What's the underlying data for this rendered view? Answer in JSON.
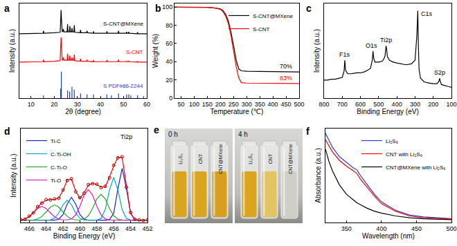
{
  "chart_data": [
    {
      "type": "line",
      "title": "a",
      "xlabel": "2θ (degree)",
      "ylabel": "Intensity (a.u.)",
      "xlim": [
        5,
        60
      ],
      "xticks": [
        10,
        20,
        30,
        40,
        50,
        60
      ],
      "ylim": [
        0,
        100
      ],
      "tick_labels": "x",
      "series": [
        {
          "name": "S-CNT@MXene",
          "color": "#000000",
          "x": [
            5,
            10,
            15,
            15.2,
            15.4,
            15.6,
            20,
            22.6,
            22.8,
            23.0,
            23.2,
            23.5,
            23.8,
            24.0,
            24.2,
            25.6,
            25.8,
            26.0,
            26.6,
            26.8,
            27.0,
            27.5,
            27.7,
            27.9,
            28.5,
            28.7,
            28.9,
            31.2,
            31.4,
            31.6,
            34.0,
            34.2,
            34.4,
            36.8,
            37.0,
            37.2,
            42.6,
            42.8,
            43.0,
            47.6,
            47.8,
            48.0,
            51.1,
            51.3,
            51.5,
            52.0,
            52.2,
            52.4,
            55.8,
            56.0,
            56.2,
            60
          ],
          "values": [
            68,
            68,
            68.5,
            68.5,
            71,
            68.5,
            69,
            69.5,
            80,
            93,
            82,
            70,
            70.5,
            73,
            70,
            70,
            78,
            70,
            70,
            76,
            70,
            70,
            74,
            70,
            70,
            77,
            69.5,
            69,
            72,
            69,
            69,
            71,
            69,
            68.5,
            70.5,
            68.5,
            68.5,
            70.5,
            68.5,
            68.5,
            71,
            68.5,
            68.5,
            70,
            68.5,
            68.5,
            70,
            68.5,
            68,
            69.5,
            68,
            68
          ]
        },
        {
          "name": "S-CNT",
          "color": "#ff0000",
          "x": [
            5,
            10,
            15,
            15.2,
            15.4,
            15.6,
            20,
            22.6,
            22.8,
            23.0,
            23.2,
            23.5,
            23.8,
            24.0,
            24.2,
            25.6,
            25.8,
            26.0,
            26.6,
            26.8,
            27.0,
            27.5,
            27.7,
            27.9,
            28.5,
            28.7,
            28.9,
            31.2,
            31.4,
            31.6,
            34.0,
            34.2,
            34.4,
            36.8,
            37.0,
            37.2,
            42.6,
            42.8,
            43.0,
            47.6,
            47.8,
            48.0,
            51.1,
            51.3,
            51.5,
            52.0,
            52.2,
            52.4,
            55.8,
            56.0,
            56.2,
            60
          ],
          "values": [
            38,
            38,
            38.5,
            38.5,
            40.5,
            38.5,
            39,
            39.5,
            52,
            64,
            54,
            40,
            40.5,
            43,
            40,
            40,
            47,
            40,
            40,
            45,
            40,
            40,
            43,
            40,
            40,
            46,
            39.5,
            39,
            41.5,
            39,
            39,
            40.5,
            39,
            38.5,
            40,
            38.5,
            38.5,
            40,
            38.5,
            38.5,
            40.5,
            38.5,
            38.5,
            39.5,
            38.5,
            38.5,
            39.5,
            38.5,
            38,
            39,
            38,
            38
          ]
        },
        {
          "name": "S PDF#86-2244",
          "color": "#1f3fbf",
          "type": "bar",
          "x": [
            15.4,
            22.8,
            23.1,
            25.8,
            26.7,
            27.7,
            28.7,
            31.4,
            34.2,
            37.0,
            42.7,
            44.7,
            47.8,
            51.3,
            52.2,
            53.1,
            56.0,
            58.6
          ],
          "values": [
            3,
            10,
            28,
            8,
            7,
            12,
            9,
            5,
            4,
            4,
            4,
            3,
            5,
            4,
            4,
            3,
            3,
            2
          ]
        }
      ]
    },
    {
      "type": "line",
      "title": "b",
      "xlabel": "Temperature (℃)",
      "ylabel": "Weight (%)",
      "xlim": [
        25,
        500
      ],
      "xticks": [
        50,
        100,
        150,
        200,
        250,
        300,
        350,
        400,
        450,
        500
      ],
      "ylim": [
        0,
        104
      ],
      "yticks": [
        0,
        20,
        40,
        60,
        80,
        100
      ],
      "legend": "upper right",
      "x": [
        25,
        100,
        150,
        180,
        200,
        210,
        220,
        230,
        240,
        250,
        260,
        270,
        280,
        300,
        400,
        500
      ],
      "series": [
        {
          "name": "S-CNT@MXene",
          "color": "#000000",
          "values": [
            100,
            100,
            99.8,
            99,
            98,
            96,
            92,
            85,
            73,
            58,
            42,
            32,
            30,
            29.5,
            29,
            28.8
          ]
        },
        {
          "name": "S-CNT",
          "color": "#ff0000",
          "values": [
            100,
            100,
            99.8,
            99,
            97.5,
            95,
            90,
            82,
            69,
            52,
            35,
            22,
            17,
            16.5,
            16,
            16
          ]
        }
      ],
      "annotations": [
        {
          "text": "70%",
          "x": 450,
          "y": 29.5,
          "color": "#000000"
        },
        {
          "text": "83%",
          "x": 450,
          "y": 16.5,
          "color": "#ff0000"
        }
      ]
    },
    {
      "type": "line",
      "title": "c",
      "xlabel": "Binding Energy (eV)",
      "ylabel": "Intensity (a.u.)",
      "xlim": [
        800,
        100
      ],
      "xticks": [
        800,
        700,
        600,
        500,
        400,
        300,
        200,
        100
      ],
      "ylim": [
        0,
        105
      ],
      "tick_labels": "x",
      "x": [
        800,
        780,
        760,
        740,
        720,
        700,
        690,
        686,
        682,
        670,
        650,
        620,
        600,
        580,
        560,
        545,
        535,
        531,
        527,
        520,
        500,
        480,
        470,
        465,
        462,
        459,
        456,
        452,
        440,
        420,
        400,
        380,
        350,
        320,
        300,
        290,
        285,
        282,
        278,
        270,
        250,
        230,
        200,
        180,
        170,
        165,
        162,
        155,
        140,
        120,
        100
      ],
      "series": [
        {
          "color": "#000000",
          "values": [
            20,
            20,
            21,
            21,
            22,
            23,
            30,
            42,
            31,
            27,
            27,
            28,
            28,
            29,
            31,
            33,
            42,
            52,
            44,
            40,
            40,
            41,
            44,
            47,
            53,
            58,
            54,
            46,
            42,
            40,
            39,
            38,
            37,
            38,
            42,
            70,
            97,
            60,
            32,
            22,
            18,
            17,
            16,
            16,
            18,
            22,
            19,
            15,
            14,
            13,
            12
          ]
        }
      ],
      "annotations": [
        {
          "text": "F1s",
          "x": 686,
          "y": 43
        },
        {
          "text": "O1s",
          "x": 540,
          "y": 53
        },
        {
          "text": "Ti2p",
          "x": 459,
          "y": 59
        },
        {
          "text": "C1s",
          "x": 235,
          "y": 88
        },
        {
          "text": "S2p",
          "x": 164,
          "y": 23
        }
      ]
    },
    {
      "type": "line",
      "title": "d",
      "xlabel": "Binding Energy (eV)",
      "ylabel": "Intensity (a.u.)",
      "xlim": [
        467,
        452
      ],
      "xticks": [
        466,
        464,
        462,
        460,
        458,
        456,
        454,
        452
      ],
      "ylim": [
        -3,
        120
      ],
      "tick_labels": "x",
      "legend": "upper left",
      "x": [
        467,
        466.5,
        466,
        465.5,
        465,
        464.5,
        464,
        463.5,
        463,
        462.5,
        462,
        461.5,
        461,
        460.5,
        460,
        459.5,
        459,
        458.5,
        458,
        457.5,
        457,
        456.5,
        456,
        455.5,
        455,
        454.5,
        454,
        453.5,
        453,
        452.5,
        452
      ],
      "series": [
        {
          "name": "Ti-C",
          "color": "#1f1fd0",
          "values": [
            0,
            0,
            0,
            0,
            0,
            0,
            0,
            0,
            0.1,
            1.3,
            7.5,
            21.2,
            30,
            21.2,
            7.5,
            1.3,
            0.1,
            0,
            0,
            0,
            0,
            0.7,
            9.2,
            41.3,
            68,
            41.3,
            9.2,
            0.7,
            0,
            0,
            0
          ]
        },
        {
          "name": "C-Ti-OH",
          "color": "#00a8c0",
          "values": [
            0,
            0,
            0,
            0,
            0,
            0,
            0,
            0.4,
            2.6,
            9.4,
            20.2,
            26,
            20.2,
            9.4,
            2.6,
            0.4,
            0,
            0,
            0.2,
            2.5,
            13.9,
            39.6,
            56,
            39.6,
            13.9,
            2.5,
            0.2,
            0,
            0,
            0,
            0
          ]
        },
        {
          "name": "C-Ti-O",
          "color": "#2ca02c",
          "values": [
            0,
            0,
            0.1,
            0.4,
            1.7,
            5.0,
            10.8,
            17.1,
            20,
            17.1,
            10.8,
            5.0,
            1.7,
            0.4,
            0.4,
            1.5,
            5.8,
            15.6,
            28,
            34,
            28,
            15.6,
            5.8,
            1.5,
            0.3,
            0,
            0,
            0,
            0,
            0,
            0
          ]
        },
        {
          "name": "Ti-O",
          "color": "#d020d0",
          "values": [
            0.4,
            1.5,
            4.5,
            9.7,
            15.4,
            18,
            15.4,
            9.7,
            4.5,
            1.5,
            0.4,
            0.4,
            1.8,
            6.9,
            18.3,
            32.9,
            40,
            32.9,
            18.3,
            6.9,
            1.8,
            0.3,
            0,
            0,
            0,
            0,
            0,
            0,
            0,
            0,
            0
          ]
        },
        {
          "color": "#ff0000",
          "values": [
            0.4,
            1.5,
            4.6,
            10.1,
            17.1,
            23.0,
            26.2,
            27.2,
            27.2,
            29.3,
            38.9,
            52.6,
            53.7,
            37.9,
            28.8,
            36.1,
            45.9,
            48.5,
            46.5,
            43.4,
            43.7,
            56.2,
            71.0,
            82.4,
            82.2,
            43.8,
            9.4,
            0.7,
            0,
            0,
            0
          ]
        },
        {
          "type": "scatter",
          "marker": "circle-open",
          "color": "#8b0000",
          "values": [
            0.9,
            1.2,
            5.3,
            9.6,
            17.8,
            22.4,
            26.9,
            26.6,
            27.9,
            28.7,
            39.6,
            51.9,
            54.3,
            37.2,
            29.5,
            35.4,
            46.6,
            47.8,
            47.2,
            42.7,
            44.4,
            55.5,
            71.8,
            81.7,
            83.0,
            43.1,
            10.1,
            1.2,
            0.4,
            -0.3,
            0.5
          ]
        }
      ],
      "annotations": [
        {
          "text": "Ti2p",
          "x": 454.5,
          "y": 103
        }
      ]
    },
    {
      "type": "line",
      "title": "f",
      "xlabel": "Wavelength (nm)",
      "ylabel": "Absorbance (a.u.)",
      "xlim": [
        320,
        500
      ],
      "xticks": [
        350,
        400,
        450,
        500
      ],
      "ylim": [
        0,
        100
      ],
      "tick_labels": "x",
      "legend": "upper right",
      "x": [
        320,
        325,
        330,
        340,
        350,
        360,
        365,
        370,
        380,
        390,
        400,
        420,
        440,
        460,
        480,
        500
      ],
      "series": [
        {
          "name": "Li₂S₆",
          "color": "#1f3fdf",
          "values": [
            95,
            88,
            80,
            70,
            64,
            58,
            56,
            50,
            40,
            30,
            22,
            13,
            8,
            6,
            5,
            4
          ]
        },
        {
          "name": "CNT with Li₂S₆",
          "color": "#ff0000",
          "values": [
            88,
            82,
            75,
            66,
            60,
            55,
            52,
            46,
            37,
            28,
            20,
            12,
            7,
            5,
            4.5,
            4
          ]
        },
        {
          "name": "CNT@MXene with Li₂S₆",
          "color": "#000000",
          "values": [
            78,
            65,
            55,
            40,
            30,
            24,
            21,
            19,
            15,
            12,
            10,
            7,
            5,
            4,
            3.5,
            3
          ]
        }
      ]
    }
  ],
  "photo": {
    "title": "e",
    "panels": [
      {
        "label": "0 h",
        "vials": [
          {
            "label": "Li₂S₆",
            "color": "#d9a520"
          },
          {
            "label": "CNT",
            "color": "#d9a520"
          },
          {
            "label": "CNT@MXene",
            "color": "#d6a01e"
          }
        ]
      },
      {
        "label": "4 h",
        "vials": [
          {
            "label": "Li₂S₆",
            "color": "#d9a520"
          },
          {
            "label": "CNT",
            "color": "#e3c463"
          },
          {
            "label": "CNT@MXene",
            "color": "#cfcfc8"
          }
        ]
      }
    ]
  }
}
